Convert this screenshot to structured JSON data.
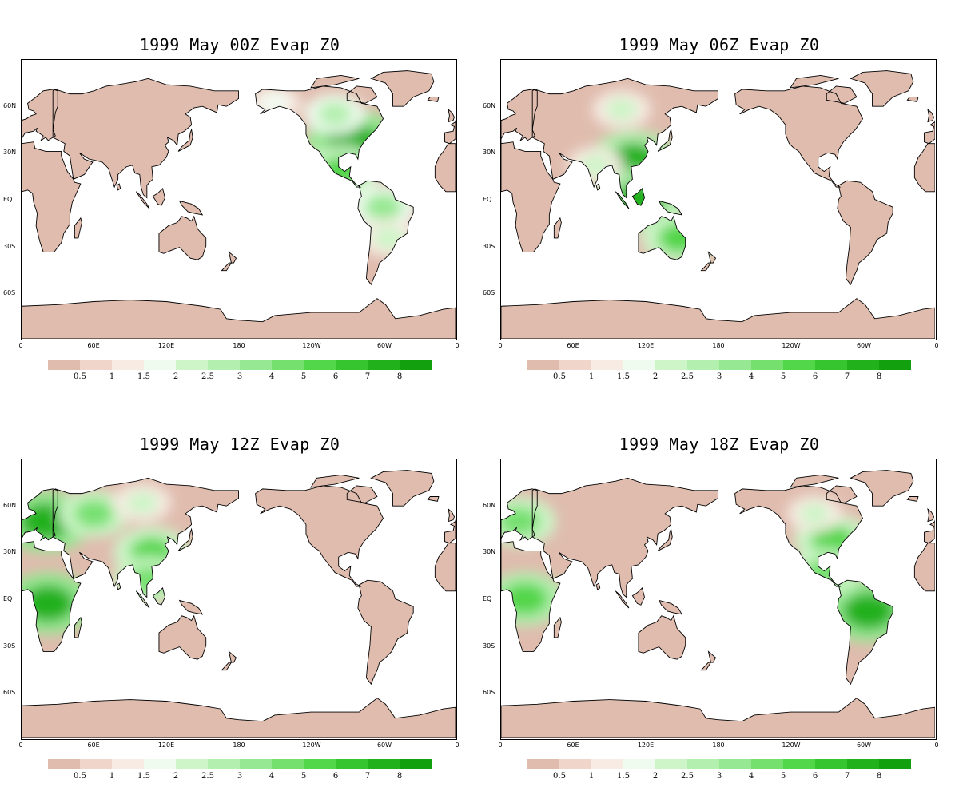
{
  "colors": {
    "land_low": "#dfbcae",
    "coast": "#000000",
    "ocean": "#ffffff"
  },
  "legend": {
    "colors": [
      "#dfbcae",
      "#efd5ca",
      "#f8ebe4",
      "#f0fbf0",
      "#cdf5c8",
      "#b3efae",
      "#96e892",
      "#76e06f",
      "#52d64a",
      "#37c52f",
      "#21b11a",
      "#13a00f"
    ],
    "labels": [
      "0.5",
      "1",
      "1.5",
      "2",
      "2.5",
      "3",
      "4",
      "5",
      "6",
      "7",
      "8"
    ]
  },
  "axes": {
    "lat_labels": [
      "60N",
      "30N",
      "EQ",
      "30S",
      "60S"
    ],
    "lon_labels": [
      "0",
      "60E",
      "120E",
      "180",
      "120W",
      "60W",
      "0"
    ]
  },
  "panels": [
    {
      "title": "1999 May  00Z Evap Z0",
      "hotspots": [
        {
          "region": "eastern-north-america",
          "lon": -85,
          "lat": 38,
          "level": 0.95
        },
        {
          "region": "central-america",
          "lon": -95,
          "lat": 18,
          "level": 0.7
        },
        {
          "region": "amazon",
          "lon": -60,
          "lat": -5,
          "level": 0.55
        },
        {
          "region": "southern-south-america",
          "lon": -55,
          "lat": -25,
          "level": 0.4
        },
        {
          "region": "canada",
          "lon": -100,
          "lat": 55,
          "level": 0.45
        },
        {
          "region": "alaska",
          "lon": -150,
          "lat": 62,
          "level": 0.3
        }
      ]
    },
    {
      "title": "1999  May 06Z Evap Z0",
      "hotspots": [
        {
          "region": "southern-china",
          "lon": 110,
          "lat": 25,
          "level": 0.9
        },
        {
          "region": "indonesia",
          "lon": 115,
          "lat": 0,
          "level": 0.9
        },
        {
          "region": "eastern-australia",
          "lon": 148,
          "lat": -25,
          "level": 0.7
        },
        {
          "region": "siberia",
          "lon": 100,
          "lat": 58,
          "level": 0.4
        },
        {
          "region": "india",
          "lon": 78,
          "lat": 22,
          "level": 0.35
        }
      ]
    },
    {
      "title": "1999  May 12Z Evap Z0",
      "hotspots": [
        {
          "region": "europe",
          "lon": 20,
          "lat": 50,
          "level": 0.95
        },
        {
          "region": "central-africa",
          "lon": 22,
          "lat": -3,
          "level": 0.95
        },
        {
          "region": "russia",
          "lon": 60,
          "lat": 55,
          "level": 0.6
        },
        {
          "region": "east-asia",
          "lon": 108,
          "lat": 30,
          "level": 0.7
        },
        {
          "region": "southeast-asia",
          "lon": 105,
          "lat": 12,
          "level": 0.6
        },
        {
          "region": "siberia",
          "lon": 100,
          "lat": 62,
          "level": 0.4
        }
      ]
    },
    {
      "title": "1999  May 18Z Evap Z0",
      "hotspots": [
        {
          "region": "amazon",
          "lon": -55,
          "lat": -8,
          "level": 0.95
        },
        {
          "region": "eastern-united-states",
          "lon": -85,
          "lat": 38,
          "level": 0.7
        },
        {
          "region": "central-africa",
          "lon": 20,
          "lat": 0,
          "level": 0.75
        },
        {
          "region": "europe",
          "lon": 15,
          "lat": 50,
          "level": 0.65
        },
        {
          "region": "central-america",
          "lon": -92,
          "lat": 17,
          "level": 0.6
        },
        {
          "region": "canada",
          "lon": -100,
          "lat": 55,
          "level": 0.35
        }
      ]
    }
  ]
}
